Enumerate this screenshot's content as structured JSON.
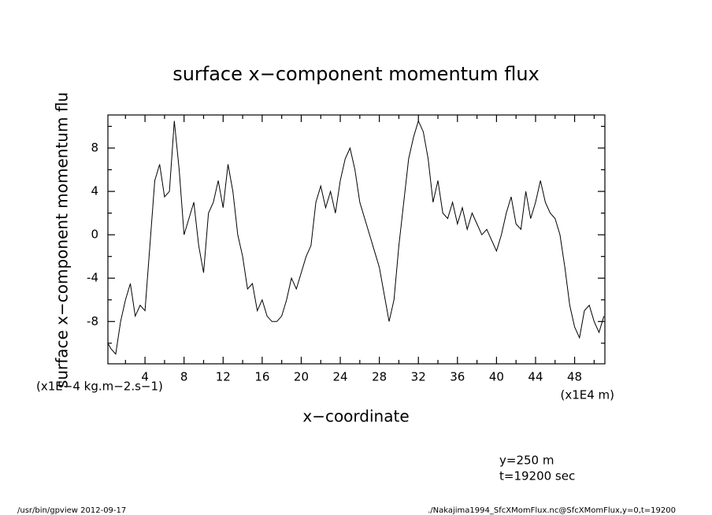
{
  "chart_data": {
    "type": "line",
    "title": "surface x−component momentum flux",
    "y_label": "surface x−component momentum flu",
    "y_units": "(x1E−4 kg.m−2.s−1)",
    "x_label": "x−coordinate",
    "x_units": "(x1E4 m)",
    "annotations": [
      "y=250 m",
      "t=19200 sec"
    ],
    "footer_left": "/usr/bin/gpview   2012-09-17",
    "footer_right": "./Nakajima1994_SfcXMomFlux.nc@SfcXMomFlux,y=0,t=19200",
    "color": "#000000",
    "xlim": [
      0.2,
      51.1
    ],
    "ylim": [
      -11.9,
      11.05
    ],
    "xticks": [
      4,
      8,
      12,
      16,
      20,
      24,
      28,
      32,
      36,
      40,
      44,
      48
    ],
    "xminorticks": [
      2,
      6,
      10,
      14,
      18,
      22,
      26,
      30,
      34,
      38,
      42,
      46,
      50
    ],
    "yticks": [
      -8,
      -4,
      0,
      4,
      8
    ],
    "yminorticks": [
      -10,
      -6,
      -2,
      2,
      6,
      10
    ],
    "x": [
      0.2,
      0.5,
      1,
      1.5,
      2,
      2.5,
      3,
      3.5,
      4,
      4.5,
      5,
      5.5,
      6,
      6.5,
      7,
      7.5,
      8,
      8.5,
      9,
      9.5,
      10,
      10.5,
      11,
      11.5,
      12,
      12.5,
      13,
      13.5,
      14,
      14.5,
      15,
      15.5,
      16,
      16.5,
      17,
      17.5,
      18,
      18.5,
      19,
      19.5,
      20,
      20.5,
      21,
      21.5,
      22,
      22.5,
      23,
      23.5,
      24,
      24.5,
      25,
      25.5,
      26,
      26.5,
      27,
      27.5,
      28,
      28.5,
      29,
      29.5,
      30,
      30.5,
      31,
      31.5,
      32,
      32.5,
      33,
      33.5,
      34,
      34.5,
      35,
      35.5,
      36,
      36.5,
      37,
      37.5,
      38,
      38.5,
      39,
      39.5,
      40,
      40.5,
      41,
      41.5,
      42,
      42.5,
      43,
      43.5,
      44,
      44.5,
      45,
      45.5,
      46,
      46.5,
      47,
      47.5,
      48,
      48.5,
      49,
      49.5,
      50,
      50.5,
      51
    ],
    "values": [
      -10,
      -10.5,
      -11,
      -8,
      -6,
      -4.5,
      -7.5,
      -6.5,
      -7,
      -1,
      5,
      6.5,
      3.5,
      4,
      10.5,
      6,
      0,
      1.5,
      3,
      -1,
      -3.5,
      2,
      3,
      5,
      2.5,
      6.5,
      4,
      0,
      -2,
      -5,
      -4.5,
      -7,
      -6,
      -7.5,
      -8,
      -8,
      -7.5,
      -6,
      -4,
      -5,
      -3.5,
      -2,
      -1,
      3,
      4.5,
      2.5,
      4,
      2,
      5,
      7,
      8,
      6,
      3,
      1.5,
      0,
      -1.5,
      -3,
      -5.5,
      -8,
      -6,
      -1,
      3,
      7,
      9,
      10.5,
      9.5,
      7,
      3,
      5,
      2,
      1.5,
      3,
      1,
      2.5,
      0.5,
      2,
      1,
      0,
      0.5,
      -0.5,
      -1.5,
      0,
      2,
      3.5,
      1,
      0.5,
      4,
      1.5,
      3,
      5,
      3,
      2,
      1.5,
      0,
      -3,
      -6.5,
      -8.5,
      -9.5,
      -7,
      -6.5,
      -8,
      -9,
      -7.5
    ]
  }
}
